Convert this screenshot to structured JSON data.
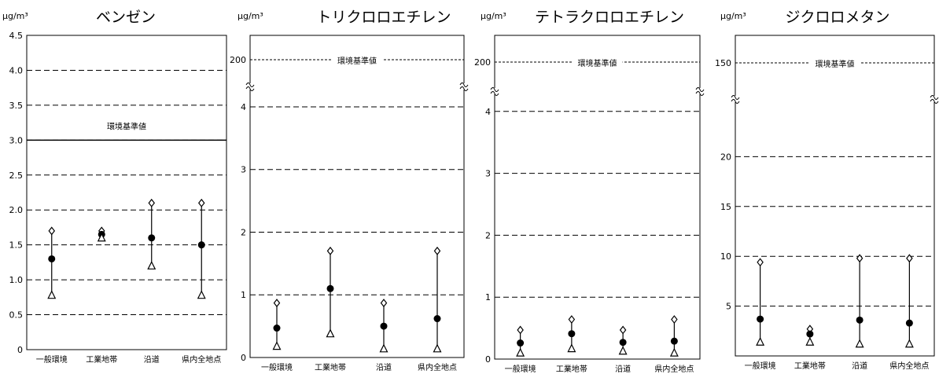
{
  "chart_data": [
    {
      "type": "scatter",
      "title": "ベンゼン",
      "unit": "μg/m³",
      "categories": [
        "一般環境",
        "工業地帯",
        "沿道",
        "県内全地点"
      ],
      "ylim": [
        0,
        4.5
      ],
      "yticks": [
        "0",
        "0.5",
        "1.0",
        "1.5",
        "2.0",
        "2.5",
        "3.0",
        "3.5",
        "4.0",
        "4.5"
      ],
      "grid": "dashed",
      "axis_break": false,
      "standard": {
        "label": "環境基準値",
        "value": 3.0
      },
      "series": [
        {
          "marker": "diamond",
          "values": [
            1.7,
            1.7,
            2.1,
            2.1
          ]
        },
        {
          "marker": "circle",
          "values": [
            1.3,
            1.65,
            1.6,
            1.5
          ]
        },
        {
          "marker": "triangle",
          "values": [
            0.78,
            1.6,
            1.2,
            0.78
          ]
        }
      ]
    },
    {
      "type": "scatter",
      "title": "トリクロロエチレン",
      "unit": "μg/m³",
      "categories": [
        "一般環境",
        "工業地帯",
        "沿道",
        "県内全地点"
      ],
      "ylim": [
        0,
        4.2
      ],
      "yticks": [
        "0",
        "1",
        "2",
        "3",
        "4"
      ],
      "grid": "dashed",
      "axis_break": true,
      "break_above": 4.2,
      "standard": {
        "label": "環境基準値",
        "value": 200,
        "tick": "200"
      },
      "series": [
        {
          "marker": "diamond",
          "values": [
            0.87,
            1.7,
            0.87,
            1.7
          ]
        },
        {
          "marker": "circle",
          "values": [
            0.47,
            1.1,
            0.5,
            0.62
          ]
        },
        {
          "marker": "triangle",
          "values": [
            0.18,
            0.38,
            0.14,
            0.14
          ]
        }
      ]
    },
    {
      "type": "scatter",
      "title": "テトラクロロエチレン",
      "unit": "μg/m³",
      "categories": [
        "一般環境",
        "工業地帯",
        "沿道",
        "県内全地点"
      ],
      "ylim": [
        0,
        4.2
      ],
      "yticks": [
        "0",
        "1",
        "2",
        "3",
        "4"
      ],
      "grid": "dashed",
      "axis_break": true,
      "break_above": 4.2,
      "standard": {
        "label": "環境基準値",
        "value": 200,
        "tick": "200"
      },
      "series": [
        {
          "marker": "diamond",
          "values": [
            0.47,
            0.64,
            0.47,
            0.64
          ]
        },
        {
          "marker": "circle",
          "values": [
            0.26,
            0.41,
            0.27,
            0.29
          ]
        },
        {
          "marker": "triangle",
          "values": [
            0.1,
            0.17,
            0.13,
            0.1
          ]
        }
      ]
    },
    {
      "type": "scatter",
      "title": "ジクロロメタン",
      "unit": "μg/m³",
      "categories": [
        "一般環境",
        "工業地帯",
        "沿道",
        "県内全地点"
      ],
      "ylim": [
        0,
        25
      ],
      "yticks": [
        "5",
        "10",
        "15",
        "20"
      ],
      "grid": "dashed",
      "axis_break": true,
      "break_above": 25,
      "standard": {
        "label": "環境基準値",
        "value": 150,
        "tick": "150"
      },
      "series": [
        {
          "marker": "diamond",
          "values": [
            9.4,
            2.7,
            9.8,
            9.8
          ]
        },
        {
          "marker": "circle",
          "values": [
            3.7,
            2.2,
            3.6,
            3.3
          ]
        },
        {
          "marker": "triangle",
          "values": [
            1.4,
            1.4,
            1.2,
            1.2
          ]
        }
      ]
    }
  ]
}
